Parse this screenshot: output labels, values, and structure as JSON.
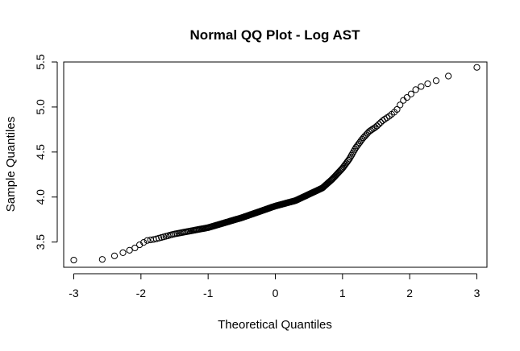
{
  "chart_data": {
    "type": "scatter",
    "title": "Normal QQ Plot - Log AST",
    "xlabel": "Theoretical Quantiles",
    "ylabel": "Sample Quantiles",
    "xlim": [
      -3.15,
      3.15
    ],
    "ylim": [
      3.22,
      5.5
    ],
    "x_ticks": [
      -3,
      -2,
      -1,
      0,
      1,
      2,
      3
    ],
    "x_tick_labels": [
      "-3",
      "-2",
      "-1",
      "0",
      "1",
      "2",
      "3"
    ],
    "y_ticks": [
      3.5,
      4.0,
      4.5,
      5.0,
      5.5
    ],
    "y_tick_labels": [
      "3.5",
      "4.0",
      "4.5",
      "5.0",
      "5.5"
    ],
    "grid": false,
    "legend": "none",
    "marker": "open-circle",
    "colors": {
      "points": "#000000",
      "axes": "#000000",
      "background": "#ffffff"
    },
    "qq_profile": {
      "x": [
        -3.0,
        -2.62,
        -2.45,
        -2.35,
        -2.2,
        -2.1,
        -2.0,
        -1.9,
        -1.8,
        -1.5,
        -1.0,
        -0.5,
        0.0,
        0.3,
        0.5,
        0.7,
        0.85,
        1.0,
        1.1,
        1.2,
        1.3,
        1.4,
        1.5,
        1.6,
        1.7,
        1.8,
        1.9,
        2.0,
        2.1,
        2.2,
        2.35,
        2.6,
        3.0
      ],
      "y": [
        3.3,
        3.3,
        3.33,
        3.36,
        3.4,
        3.43,
        3.48,
        3.52,
        3.53,
        3.59,
        3.66,
        3.77,
        3.9,
        3.96,
        4.03,
        4.1,
        4.2,
        4.32,
        4.42,
        4.55,
        4.65,
        4.73,
        4.78,
        4.85,
        4.9,
        4.96,
        5.07,
        5.13,
        5.2,
        5.24,
        5.28,
        5.35,
        5.44
      ]
    },
    "n_points": 300
  }
}
